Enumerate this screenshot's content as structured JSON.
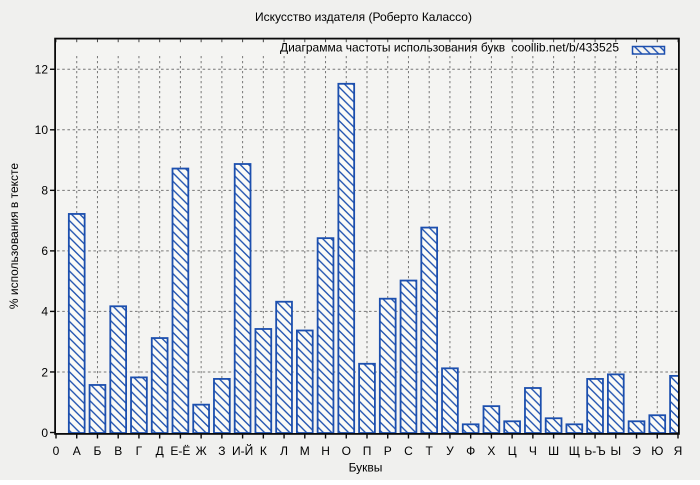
{
  "title": "Искусство издателя (Роберто Калассо)",
  "legend": {
    "label": "Диаграмма частоты использования букв",
    "source": "coollib.net/b/433525",
    "swatch": "hatched-bar-sample"
  },
  "axes": {
    "x_label": "Буквы",
    "y_label": "% использования в тексте",
    "y_tick_labels": [
      "0",
      "2",
      "4",
      "6",
      "8",
      "10",
      "12"
    ]
  },
  "chart_data": {
    "type": "bar",
    "title": "Искусство издателя (Роберто Калассо)",
    "xlabel": "Буквы",
    "ylabel": "% использования в тексте",
    "categories": [
      "0",
      "А",
      "Б",
      "В",
      "Г",
      "Д",
      "Е-Ё",
      "Ж",
      "З",
      "И-Й",
      "К",
      "Л",
      "М",
      "Н",
      "О",
      "П",
      "Р",
      "С",
      "Т",
      "У",
      "Ф",
      "Х",
      "Ц",
      "Ч",
      "Ш",
      "Щ",
      "Ь-Ъ",
      "Ы",
      "Э",
      "Ю",
      "Я"
    ],
    "values": [
      0,
      7.25,
      1.6,
      4.2,
      1.85,
      3.15,
      8.75,
      0.95,
      1.8,
      8.9,
      3.45,
      4.35,
      3.4,
      6.45,
      11.55,
      2.3,
      4.45,
      5.05,
      6.8,
      2.15,
      0.3,
      0.9,
      0.4,
      1.5,
      0.5,
      0.3,
      1.8,
      1.95,
      0.4,
      0.6,
      1.9
    ],
    "ylim": [
      0,
      13
    ],
    "yticks": [
      0,
      2,
      4,
      6,
      8,
      10,
      12
    ],
    "grid": true,
    "legend_position": "top-right-inside",
    "bar_style": "hatched"
  },
  "colors": {
    "figure_background": "#f0f0ee",
    "plot_background": "#f4f4f2",
    "bar_fill": "#fbfbf7",
    "bar_edge": "#1c4fae",
    "hatch": "#1c4fae",
    "grid": "#777777",
    "axis": "#0a0a0a",
    "text": "#000000"
  }
}
